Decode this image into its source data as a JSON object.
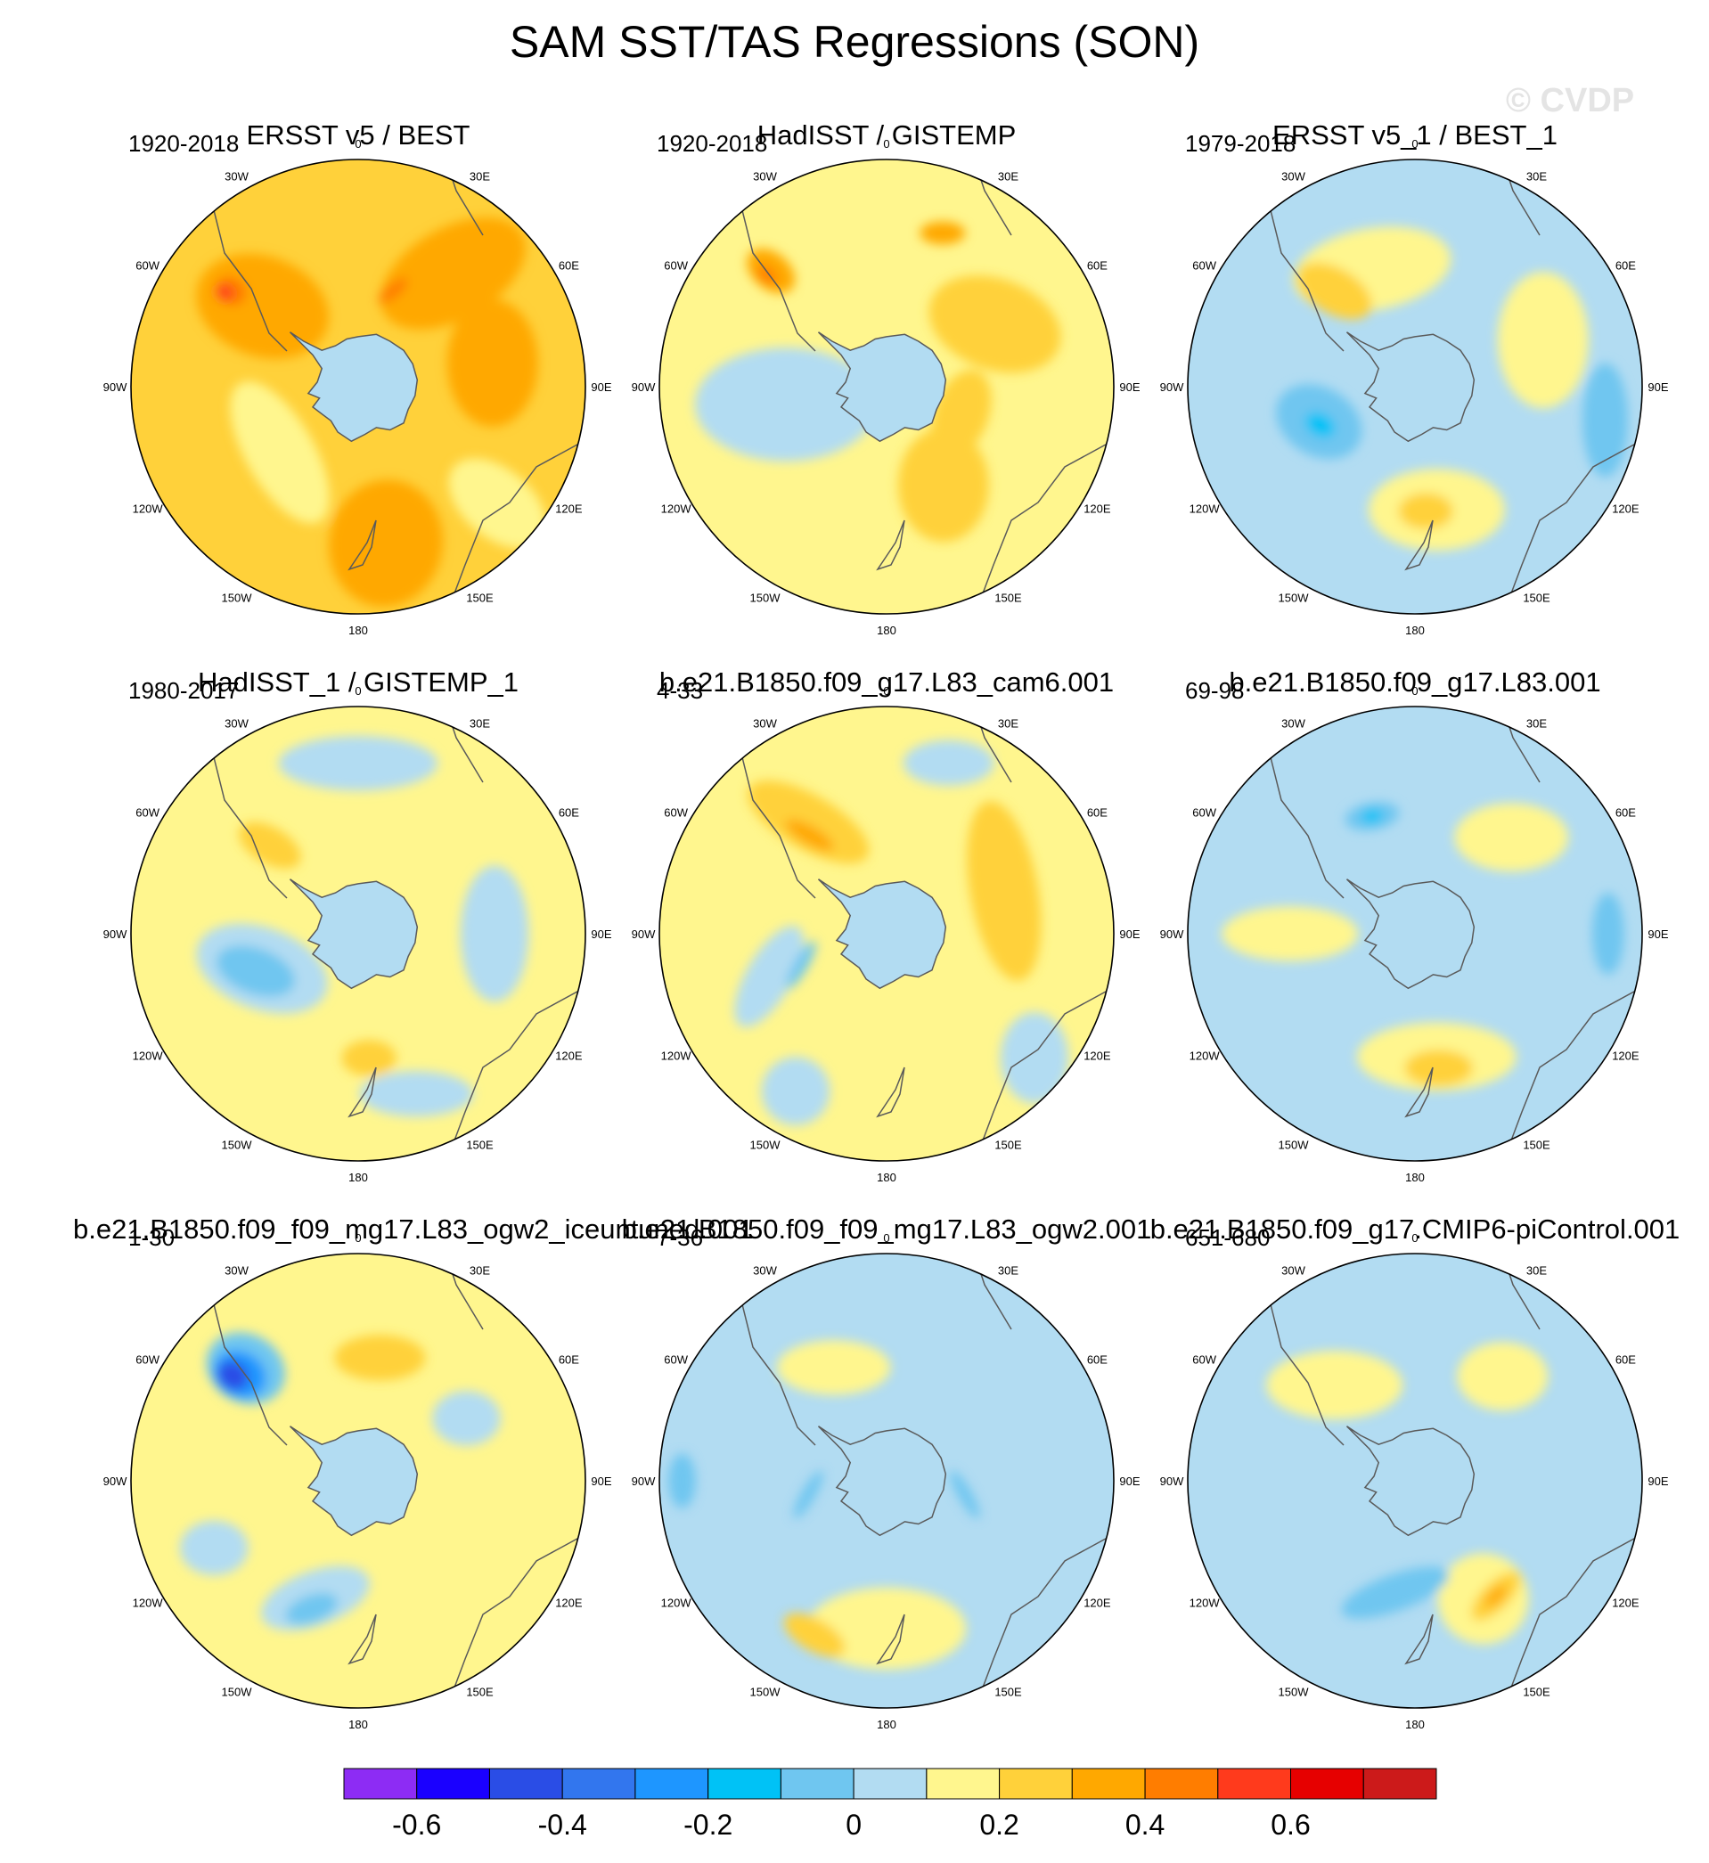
{
  "title": "SAM SST/TAS Regressions (SON)",
  "watermark": "© CVDP",
  "lon_labels": [
    "0",
    "30E",
    "60E",
    "90E",
    "120E",
    "150E",
    "180",
    "150W",
    "120W",
    "90W",
    "60W",
    "30W"
  ],
  "panels": [
    {
      "title": "ERSST v5 / BEST",
      "years": "1920-2018",
      "background": "#ffd13a",
      "blobs": [
        {
          "lon": -50,
          "r": 0.55,
          "rx": 0.3,
          "ry": 0.22,
          "rot": 20,
          "c": "#ffa800"
        },
        {
          "lon": 40,
          "r": 0.65,
          "rx": 0.35,
          "ry": 0.2,
          "rot": -30,
          "c": "#ffa800"
        },
        {
          "lon": 80,
          "r": 0.6,
          "rx": 0.2,
          "ry": 0.28,
          "rot": 0,
          "c": "#ffa800"
        },
        {
          "lon": 170,
          "r": 0.7,
          "rx": 0.25,
          "ry": 0.28,
          "rot": 10,
          "c": "#ffa800"
        },
        {
          "lon": -130,
          "r": 0.45,
          "rx": 0.35,
          "ry": 0.15,
          "rot": 60,
          "c": "#fff68e"
        },
        {
          "lon": 130,
          "r": 0.8,
          "rx": 0.25,
          "ry": 0.15,
          "rot": 40,
          "c": "#fff68e"
        },
        {
          "lon": -53,
          "r": 0.7,
          "rx": 0.07,
          "ry": 0.06,
          "rot": 30,
          "c": "#ff7d00"
        },
        {
          "lon": -55,
          "r": 0.72,
          "rx": 0.04,
          "ry": 0.035,
          "rot": 30,
          "c": "#ff3a1c"
        },
        {
          "lon": 20,
          "r": 0.45,
          "rx": 0.08,
          "ry": 0.03,
          "rot": -40,
          "c": "#ff7d00"
        }
      ]
    },
    {
      "title": "HadISST / GISTEMP",
      "years": "1920-2018",
      "background": "#fff68e",
      "blobs": [
        {
          "lon": -100,
          "r": 0.45,
          "rx": 0.4,
          "ry": 0.25,
          "rot": 0,
          "c": "#b2dcf2"
        },
        {
          "lon": 60,
          "r": 0.55,
          "rx": 0.3,
          "ry": 0.2,
          "rot": 20,
          "c": "#ffd13a"
        },
        {
          "lon": 150,
          "r": 0.5,
          "rx": 0.2,
          "ry": 0.25,
          "rot": 0,
          "c": "#ffd13a"
        },
        {
          "lon": -45,
          "r": 0.72,
          "rx": 0.12,
          "ry": 0.08,
          "rot": 40,
          "c": "#ffa800"
        },
        {
          "lon": -47,
          "r": 0.72,
          "rx": 0.05,
          "ry": 0.03,
          "rot": 40,
          "c": "#ff7d00"
        },
        {
          "lon": 20,
          "r": 0.72,
          "rx": 0.1,
          "ry": 0.05,
          "rot": 0,
          "c": "#ffa800"
        },
        {
          "lon": 110,
          "r": 0.35,
          "rx": 0.12,
          "ry": 0.2,
          "rot": 20,
          "c": "#ffd13a"
        }
      ]
    },
    {
      "title": "ERSST v5_1 / BEST_1",
      "years": "1979-2018",
      "background": "#b2dcf2",
      "blobs": [
        {
          "lon": -20,
          "r": 0.55,
          "rx": 0.35,
          "ry": 0.18,
          "rot": -10,
          "c": "#fff68e"
        },
        {
          "lon": 70,
          "r": 0.6,
          "rx": 0.2,
          "ry": 0.3,
          "rot": 0,
          "c": "#fff68e"
        },
        {
          "lon": 170,
          "r": 0.55,
          "rx": 0.3,
          "ry": 0.18,
          "rot": 0,
          "c": "#fff68e"
        },
        {
          "lon": -40,
          "r": 0.55,
          "rx": 0.18,
          "ry": 0.1,
          "rot": 30,
          "c": "#ffd13a"
        },
        {
          "lon": 175,
          "r": 0.55,
          "rx": 0.12,
          "ry": 0.08,
          "rot": 0,
          "c": "#ffd13a"
        },
        {
          "lon": -110,
          "r": 0.45,
          "rx": 0.2,
          "ry": 0.15,
          "rot": 30,
          "c": "#6fc6f0"
        },
        {
          "lon": -112,
          "r": 0.45,
          "rx": 0.07,
          "ry": 0.05,
          "rot": 30,
          "c": "#00c2f6"
        },
        {
          "lon": 100,
          "r": 0.85,
          "rx": 0.1,
          "ry": 0.25,
          "rot": 0,
          "c": "#6fc6f0"
        }
      ]
    },
    {
      "title": "HadISST_1 / GISTEMP_1",
      "years": "1980-2017",
      "background": "#fff68e",
      "blobs": [
        {
          "lon": -110,
          "r": 0.45,
          "rx": 0.3,
          "ry": 0.18,
          "rot": 20,
          "c": "#b2dcf2"
        },
        {
          "lon": -110,
          "r": 0.48,
          "rx": 0.18,
          "ry": 0.1,
          "rot": 20,
          "c": "#6fc6f0"
        },
        {
          "lon": 0,
          "r": 0.75,
          "rx": 0.35,
          "ry": 0.12,
          "rot": 0,
          "c": "#b2dcf2"
        },
        {
          "lon": 90,
          "r": 0.6,
          "rx": 0.15,
          "ry": 0.3,
          "rot": 0,
          "c": "#b2dcf2"
        },
        {
          "lon": 160,
          "r": 0.75,
          "rx": 0.25,
          "ry": 0.1,
          "rot": 0,
          "c": "#b2dcf2"
        },
        {
          "lon": -45,
          "r": 0.55,
          "rx": 0.15,
          "ry": 0.08,
          "rot": 30,
          "c": "#ffd13a"
        },
        {
          "lon": 175,
          "r": 0.55,
          "rx": 0.12,
          "ry": 0.08,
          "rot": 0,
          "c": "#ffd13a"
        }
      ]
    },
    {
      "title": "b.e21.B1850.f09_g17.L83_cam6.001",
      "years": "4-33",
      "background": "#fff68e",
      "blobs": [
        {
          "lon": -35,
          "r": 0.6,
          "rx": 0.3,
          "ry": 0.12,
          "rot": 30,
          "c": "#ffd13a"
        },
        {
          "lon": -38,
          "r": 0.55,
          "rx": 0.12,
          "ry": 0.04,
          "rot": 30,
          "c": "#ffa800"
        },
        {
          "lon": 70,
          "r": 0.55,
          "rx": 0.15,
          "ry": 0.4,
          "rot": -10,
          "c": "#ffd13a"
        },
        {
          "lon": -110,
          "r": 0.55,
          "rx": 0.1,
          "ry": 0.25,
          "rot": 30,
          "c": "#b2dcf2"
        },
        {
          "lon": -110,
          "r": 0.4,
          "rx": 0.03,
          "ry": 0.12,
          "rot": 30,
          "c": "#6fc6f0"
        },
        {
          "lon": 130,
          "r": 0.85,
          "rx": 0.15,
          "ry": 0.2,
          "rot": 0,
          "c": "#b2dcf2"
        },
        {
          "lon": -150,
          "r": 0.8,
          "rx": 0.15,
          "ry": 0.15,
          "rot": 0,
          "c": "#b2dcf2"
        },
        {
          "lon": 20,
          "r": 0.8,
          "rx": 0.2,
          "ry": 0.1,
          "rot": 0,
          "c": "#b2dcf2"
        }
      ]
    },
    {
      "title": "b.e21.B1850.f09_g17.L83.001",
      "years": "69-98",
      "background": "#b2dcf2",
      "blobs": [
        {
          "lon": -90,
          "r": 0.55,
          "rx": 0.3,
          "ry": 0.12,
          "rot": 0,
          "c": "#fff68e"
        },
        {
          "lon": 45,
          "r": 0.6,
          "rx": 0.25,
          "ry": 0.15,
          "rot": 0,
          "c": "#fff68e"
        },
        {
          "lon": 170,
          "r": 0.55,
          "rx": 0.35,
          "ry": 0.15,
          "rot": 0,
          "c": "#fff68e"
        },
        {
          "lon": 170,
          "r": 0.6,
          "rx": 0.15,
          "ry": 0.08,
          "rot": 0,
          "c": "#ffd13a"
        },
        {
          "lon": -20,
          "r": 0.55,
          "rx": 0.12,
          "ry": 0.06,
          "rot": -10,
          "c": "#6fc6f0"
        },
        {
          "lon": -20,
          "r": 0.55,
          "rx": 0.05,
          "ry": 0.03,
          "rot": -10,
          "c": "#00c2f6"
        },
        {
          "lon": 90,
          "r": 0.85,
          "rx": 0.07,
          "ry": 0.18,
          "rot": 0,
          "c": "#6fc6f0"
        }
      ]
    },
    {
      "title": "b.e21.B1850.f09_f09_mg17.L83_ogw2_iceuntuned.001",
      "years": "1-30",
      "background": "#fff68e",
      "blobs": [
        {
          "lon": -45,
          "r": 0.7,
          "rx": 0.18,
          "ry": 0.15,
          "rot": 30,
          "c": "#6fc6f0"
        },
        {
          "lon": -48,
          "r": 0.7,
          "rx": 0.12,
          "ry": 0.1,
          "rot": 30,
          "c": "#1e96ff"
        },
        {
          "lon": -50,
          "r": 0.72,
          "rx": 0.07,
          "ry": 0.06,
          "rot": 30,
          "c": "#2a4de6"
        },
        {
          "lon": -160,
          "r": 0.55,
          "rx": 0.25,
          "ry": 0.12,
          "rot": -20,
          "c": "#b2dcf2"
        },
        {
          "lon": -160,
          "r": 0.6,
          "rx": 0.12,
          "ry": 0.06,
          "rot": -20,
          "c": "#6fc6f0"
        },
        {
          "lon": -115,
          "r": 0.7,
          "rx": 0.15,
          "ry": 0.12,
          "rot": 0,
          "c": "#b2dcf2"
        },
        {
          "lon": 60,
          "r": 0.55,
          "rx": 0.15,
          "ry": 0.12,
          "rot": 0,
          "c": "#b2dcf2"
        },
        {
          "lon": 10,
          "r": 0.55,
          "rx": 0.2,
          "ry": 0.1,
          "rot": 0,
          "c": "#ffd13a"
        }
      ]
    },
    {
      "title": "b.e21.B1850.f09_f09_mg17.L83_ogw2.001",
      "years": "7-36",
      "background": "#b2dcf2",
      "blobs": [
        {
          "lon": -25,
          "r": 0.55,
          "rx": 0.25,
          "ry": 0.12,
          "rot": 0,
          "c": "#fff68e"
        },
        {
          "lon": 180,
          "r": 0.65,
          "rx": 0.35,
          "ry": 0.18,
          "rot": 0,
          "c": "#fff68e"
        },
        {
          "lon": -155,
          "r": 0.75,
          "rx": 0.15,
          "ry": 0.07,
          "rot": 30,
          "c": "#ffd13a"
        },
        {
          "lon": 100,
          "r": 0.35,
          "rx": 0.03,
          "ry": 0.12,
          "rot": -30,
          "c": "#6fc6f0"
        },
        {
          "lon": -100,
          "r": 0.35,
          "rx": 0.03,
          "ry": 0.12,
          "rot": 30,
          "c": "#6fc6f0"
        },
        {
          "lon": -90,
          "r": 0.9,
          "rx": 0.06,
          "ry": 0.12,
          "rot": 0,
          "c": "#6fc6f0"
        }
      ]
    },
    {
      "title": "b.e21.B1850.f09_g17.CMIP6-piControl.001",
      "years": "651-680",
      "background": "#b2dcf2",
      "blobs": [
        {
          "lon": -40,
          "r": 0.55,
          "rx": 0.3,
          "ry": 0.15,
          "rot": 0,
          "c": "#fff68e"
        },
        {
          "lon": 40,
          "r": 0.6,
          "rx": 0.2,
          "ry": 0.15,
          "rot": 0,
          "c": "#fff68e"
        },
        {
          "lon": 150,
          "r": 0.6,
          "rx": 0.2,
          "ry": 0.2,
          "rot": -40,
          "c": "#fff68e"
        },
        {
          "lon": 145,
          "r": 0.62,
          "rx": 0.14,
          "ry": 0.06,
          "rot": -45,
          "c": "#ffd13a"
        },
        {
          "lon": 145,
          "r": 0.62,
          "rx": 0.06,
          "ry": 0.025,
          "rot": -45,
          "c": "#ffa800"
        },
        {
          "lon": -170,
          "r": 0.5,
          "rx": 0.25,
          "ry": 0.08,
          "rot": -20,
          "c": "#6fc6f0"
        }
      ]
    }
  ],
  "colorbar": {
    "colors": [
      "#8d2cf4",
      "#1a00ff",
      "#2a4de6",
      "#3276ee",
      "#1e96ff",
      "#00c2f6",
      "#6fc6f0",
      "#b2dcf2",
      "#fff68e",
      "#ffd13a",
      "#ffa800",
      "#ff7d00",
      "#ff3a1c",
      "#e60000",
      "#cc1a1a",
      "#ffb6b6"
    ],
    "tick_values": [
      -0.6,
      -0.4,
      -0.2,
      0,
      0.2,
      0.4,
      0.6
    ],
    "tick_labels": [
      "-0.6",
      "-0.4",
      "-0.2",
      "0",
      "0.2",
      "0.4",
      "0.6"
    ],
    "boundaries": [
      -0.7,
      -0.6,
      -0.5,
      -0.4,
      -0.3,
      -0.2,
      -0.1,
      0,
      0.1,
      0.2,
      0.3,
      0.4,
      0.5,
      0.6,
      0.7,
      0.8
    ]
  }
}
